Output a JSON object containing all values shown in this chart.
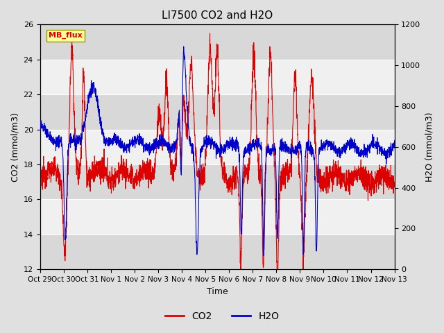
{
  "title": "LI7500 CO2 and H2O",
  "xlabel": "Time",
  "ylabel_left": "CO2 (mmol/m3)",
  "ylabel_right": "H2O (mmol/m3)",
  "ylim_left": [
    12,
    26
  ],
  "ylim_right": [
    0,
    1200
  ],
  "yticks_left": [
    12,
    14,
    16,
    18,
    20,
    22,
    24,
    26
  ],
  "yticks_right": [
    0,
    200,
    400,
    600,
    800,
    1000,
    1200
  ],
  "xtick_labels": [
    "Oct 29",
    "Oct 30",
    "Oct 31",
    "Nov 1",
    "Nov 2",
    "Nov 3",
    "Nov 4",
    "Nov 5",
    "Nov 6",
    "Nov 7",
    "Nov 8",
    "Nov 9",
    "Nov 10",
    "Nov 11",
    "Nov 12",
    "Nov 13"
  ],
  "co2_color": "#dd0000",
  "h2o_color": "#0000cc",
  "background_color": "#e0e0e0",
  "plot_bg_color": "#e8e8e8",
  "band_color_dark": "#d8d8d8",
  "band_color_light": "#f0f0f0",
  "grid_color": "#ffffff",
  "annotation_text": "MB_flux",
  "annotation_bg": "#ffff99",
  "annotation_border": "#aaaaaa",
  "legend_co2": "CO2",
  "legend_h2o": "H2O",
  "n_days": 15,
  "pts_per_day": 144,
  "co2_lw": 0.8,
  "h2o_lw": 0.8
}
